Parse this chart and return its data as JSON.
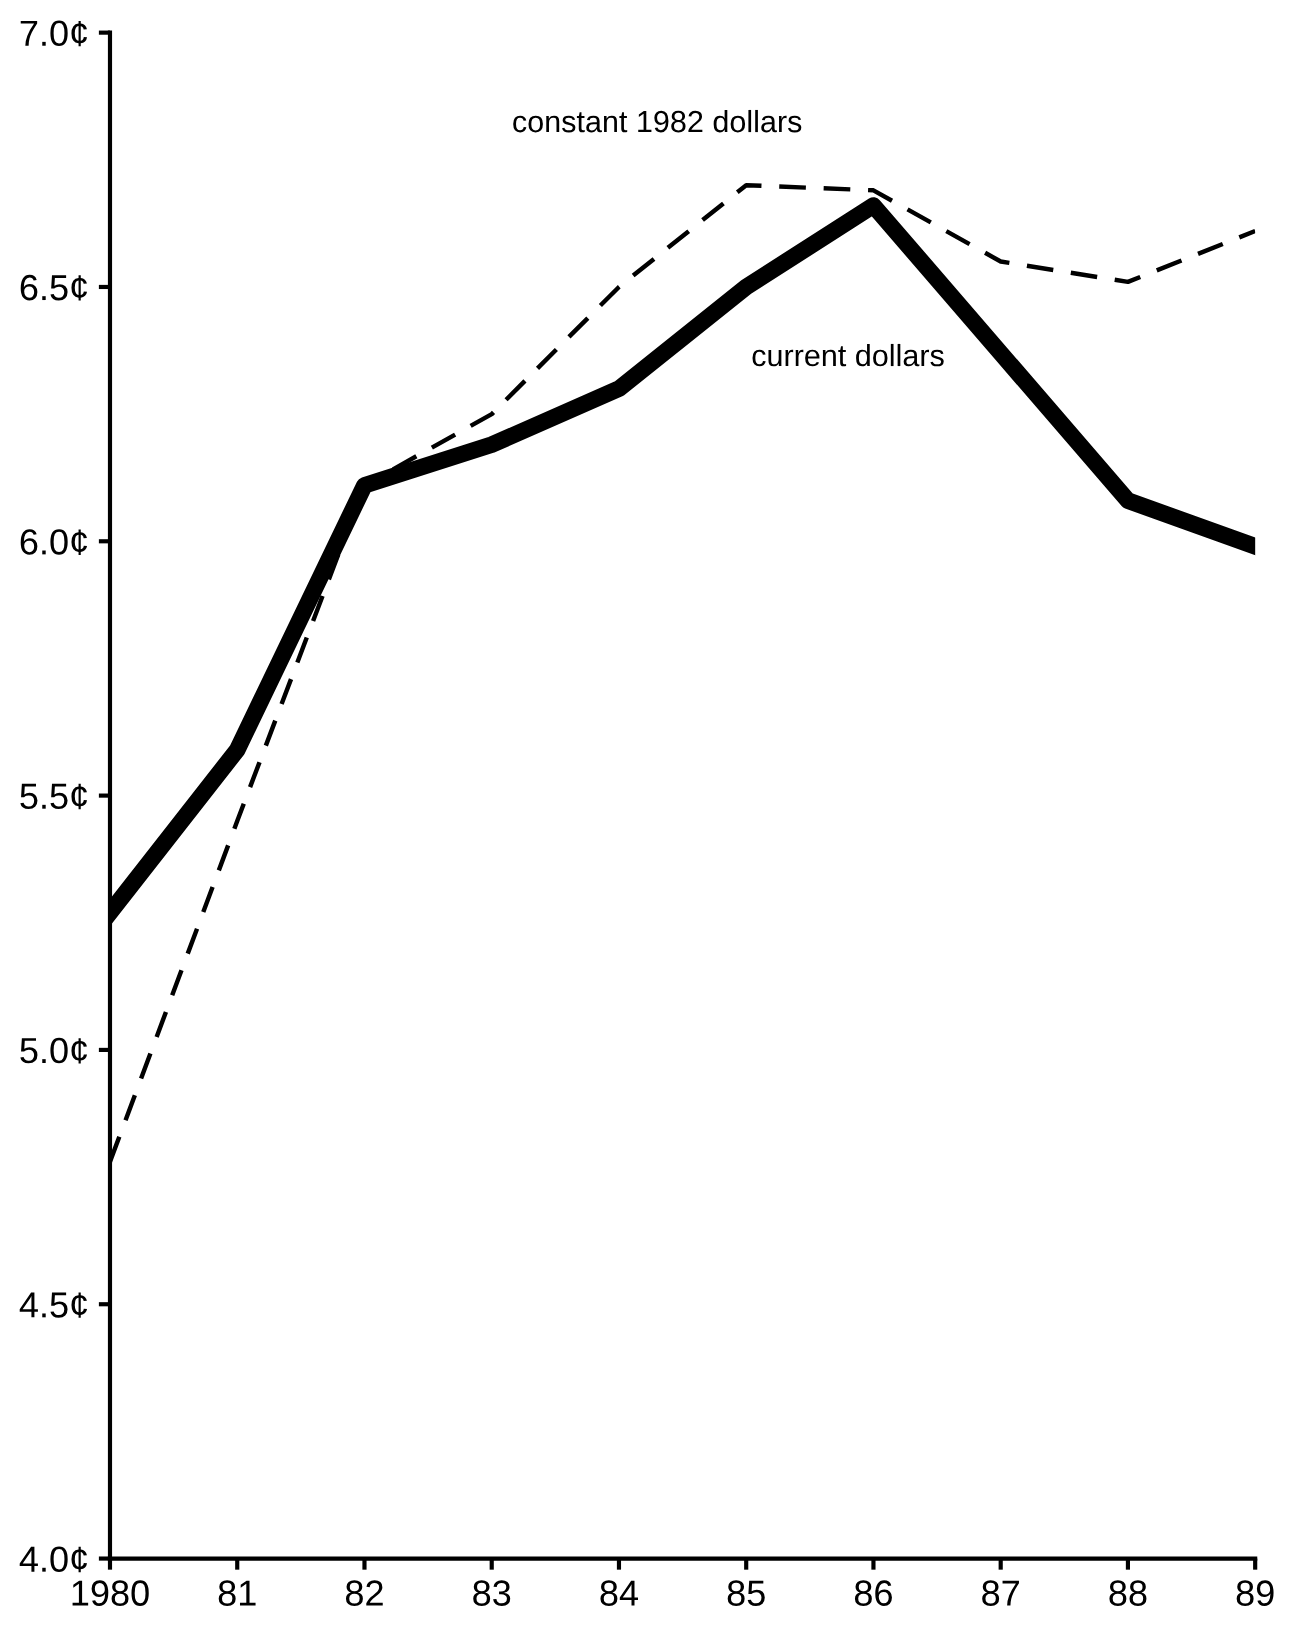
{
  "chart_data": {
    "type": "line",
    "x": [
      1980,
      1981,
      1982,
      1983,
      1984,
      1985,
      1986,
      1987,
      1988,
      1989
    ],
    "series": [
      {
        "name": "constant 1982 dollars",
        "color": "#000000",
        "line_style": "dashed",
        "values": [
          4.78,
          5.45,
          6.11,
          6.25,
          6.5,
          6.7,
          6.69,
          6.55,
          6.51,
          6.61
        ]
      },
      {
        "name": "current dollars",
        "color": "#000000",
        "line_style": "solid",
        "values": [
          5.27,
          5.59,
          6.11,
          6.19,
          6.3,
          6.5,
          6.66,
          6.37,
          6.08,
          5.99
        ]
      }
    ],
    "xlim": [
      1980,
      1989
    ],
    "xticks": [
      {
        "value": 1980,
        "label": "1980"
      },
      {
        "value": 1981,
        "label": "81"
      },
      {
        "value": 1982,
        "label": "82"
      },
      {
        "value": 1983,
        "label": "83"
      },
      {
        "value": 1984,
        "label": "84"
      },
      {
        "value": 1985,
        "label": "85"
      },
      {
        "value": 1986,
        "label": "86"
      },
      {
        "value": 1987,
        "label": "87"
      },
      {
        "value": 1988,
        "label": "88"
      },
      {
        "value": 1989,
        "label": "89"
      }
    ],
    "ylim": [
      4.0,
      7.0
    ],
    "yticks": [
      {
        "value": 4.0,
        "label": "4.0¢"
      },
      {
        "value": 4.5,
        "label": "4.5¢"
      },
      {
        "value": 5.0,
        "label": "5.0¢"
      },
      {
        "value": 5.5,
        "label": "5.5¢"
      },
      {
        "value": 6.0,
        "label": "6.0¢"
      },
      {
        "value": 6.5,
        "label": "6.5¢"
      },
      {
        "value": 7.0,
        "label": "7.0¢"
      }
    ],
    "grid": false,
    "legend": false,
    "marker": "none"
  }
}
